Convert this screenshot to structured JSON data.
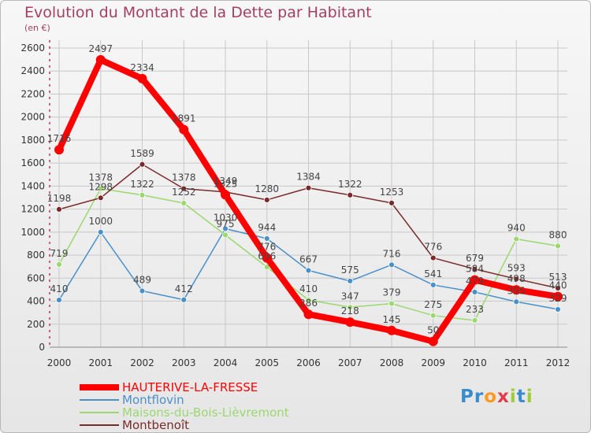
{
  "chart_data": {
    "type": "line",
    "title": "Evolution du Montant de la Dette par Habitant",
    "subtitle": "(en €)",
    "categories": [
      "2000",
      "2001",
      "2002",
      "2003",
      "2004",
      "2005",
      "2006",
      "2007",
      "2008",
      "2009",
      "2010",
      "2011",
      "2012"
    ],
    "ylim": [
      0,
      2600
    ],
    "yticks": [
      "0",
      "200",
      "400",
      "600",
      "800",
      "1000",
      "1200",
      "1400",
      "1600",
      "1800",
      "2000",
      "2200",
      "2400",
      "2600"
    ],
    "grid": true,
    "legend_position": "bottom-left",
    "series": [
      {
        "name": "HAUTERIVE-LA-FRESSE",
        "color": "#ff0000",
        "emphasis": true,
        "values": [
          1716,
          2497,
          2334,
          1891,
          1325,
          776,
          286,
          218,
          145,
          50,
          584,
          498,
          440
        ],
        "labels": [
          "1716",
          "2497",
          "2334",
          "1891",
          "1325",
          "776",
          "286",
          "218",
          "145",
          "50",
          "584",
          "498",
          "440"
        ]
      },
      {
        "name": "Montflovin",
        "color": "#4a90c8",
        "values": [
          410,
          1000,
          489,
          412,
          1030,
          944,
          667,
          575,
          716,
          541,
          479,
          395,
          329
        ],
        "labels": [
          "410",
          "1000",
          "489",
          "412",
          "1030",
          "944",
          "667",
          "575",
          "716",
          "541",
          "479",
          "395",
          "329"
        ]
      },
      {
        "name": "Maisons-du-Bois-Lièvremont",
        "color": "#9bd86f",
        "values": [
          719,
          1378,
          1322,
          1252,
          975,
          696,
          410,
          347,
          379,
          275,
          233,
          940,
          880
        ],
        "labels": [
          "719",
          "1378",
          "1322",
          "1252",
          "975",
          "696",
          "410",
          "347",
          "379",
          "275",
          "233",
          "940",
          "880"
        ]
      },
      {
        "name": "Montbenoît",
        "color": "#7a2a2a",
        "values": [
          1198,
          1298,
          1589,
          1378,
          1349,
          1280,
          1384,
          1322,
          1253,
          776,
          679,
          593,
          513
        ],
        "labels": [
          "1198",
          "1298",
          "1589",
          "1378",
          "1349",
          "1280",
          "1384",
          "1322",
          "1253",
          "776",
          "679",
          "593",
          "513"
        ]
      }
    ]
  },
  "brand": {
    "letters": [
      "P",
      "r",
      "o",
      "x",
      "i",
      "t",
      "i"
    ],
    "colors": [
      "#3a8ccc",
      "#3a8ccc",
      "#ff9a22",
      "#e23b4a",
      "#9ccc3a",
      "#3a8ccc",
      "#9ccc3a"
    ]
  }
}
